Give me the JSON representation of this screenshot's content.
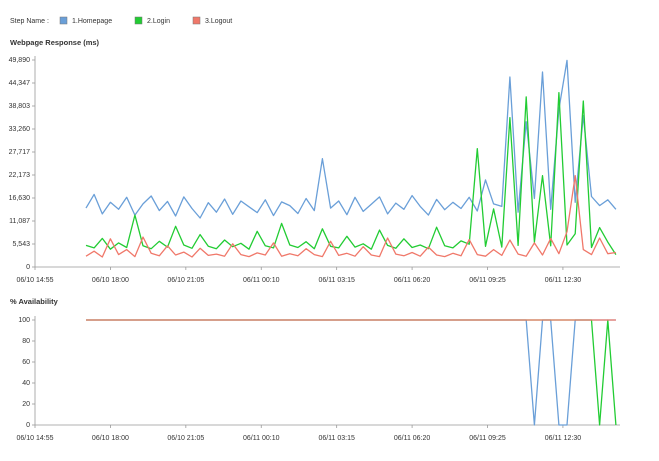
{
  "legend_title": "Step Name :",
  "chart_data": [
    {
      "type": "line",
      "title": "Webpage Response (ms)",
      "x": [
        "06/10 17:00",
        "06/10 17:20",
        "06/10 17:40",
        "06/10 18:00",
        "06/10 18:20",
        "06/10 18:40",
        "06/10 19:00",
        "06/10 19:20",
        "06/10 19:40",
        "06/10 20:00",
        "06/10 20:20",
        "06/10 20:40",
        "06/10 21:00",
        "06/10 21:20",
        "06/10 21:40",
        "06/10 22:00",
        "06/10 22:20",
        "06/10 22:40",
        "06/10 23:00",
        "06/10 23:20",
        "06/10 23:40",
        "06/11 00:00",
        "06/11 00:20",
        "06/11 00:40",
        "06/11 01:00",
        "06/11 01:20",
        "06/11 01:40",
        "06/11 02:00",
        "06/11 02:20",
        "06/11 02:40",
        "06/11 03:00",
        "06/11 03:20",
        "06/11 03:40",
        "06/11 04:00",
        "06/11 04:20",
        "06/11 04:40",
        "06/11 05:00",
        "06/11 05:20",
        "06/11 05:40",
        "06/11 06:00",
        "06/11 06:20",
        "06/11 06:40",
        "06/11 07:00",
        "06/11 07:20",
        "06/11 07:40",
        "06/11 08:00",
        "06/11 08:20",
        "06/11 08:40",
        "06/11 09:00",
        "06/11 09:20",
        "06/11 09:40",
        "06/11 10:00",
        "06/11 10:20",
        "06/11 10:40",
        "06/11 11:00",
        "06/11 11:20",
        "06/11 11:40",
        "06/11 12:00",
        "06/11 12:20",
        "06/11 12:40",
        "06/11 13:00",
        "06/11 13:20",
        "06/11 13:40",
        "06/11 14:00",
        "06/11 14:20",
        "06/11 14:40"
      ],
      "xlim": [
        "06/10 14:55",
        "06/11 14:50"
      ],
      "xticks": [
        "06/10 14:55",
        "06/10 18:00",
        "06/10 21:05",
        "06/11 00:10",
        "06/11 03:15",
        "06/11 06:20",
        "06/11 09:25",
        "06/11 12:30"
      ],
      "ylim": [
        0,
        49890
      ],
      "yticks": [
        0,
        {
          "value": 5543,
          "label": "5,543"
        },
        {
          "value": 11087,
          "label": "11,087"
        },
        {
          "value": 16630,
          "label": "16,630"
        },
        {
          "value": 22173,
          "label": "22,173"
        },
        {
          "value": 27717,
          "label": "27,717"
        },
        {
          "value": 33260,
          "label": "33,260"
        },
        {
          "value": 38803,
          "label": "38,803"
        },
        {
          "value": 44347,
          "label": "44,347"
        },
        {
          "value": 49890,
          "label": "49,890"
        }
      ],
      "series": [
        {
          "name": "1.Homepage",
          "color": "#6a9fd8",
          "values": [
            14200,
            17500,
            12800,
            15600,
            13900,
            16800,
            12500,
            15200,
            17100,
            13600,
            15800,
            12300,
            16900,
            14100,
            11800,
            15500,
            13200,
            16400,
            12700,
            15900,
            14500,
            13100,
            16200,
            12400,
            15700,
            14800,
            12900,
            16500,
            13600,
            26100,
            14200,
            15900,
            12600,
            16800,
            13400,
            15100,
            16900,
            12800,
            15400,
            13900,
            17200,
            14600,
            12500,
            16300,
            13800,
            15600,
            14100,
            16800,
            13500,
            21000,
            15200,
            14600,
            45800,
            13200,
            35000,
            16500,
            47000,
            13900,
            38000,
            49800,
            15600,
            36500,
            17000,
            14800,
            16200,
            13900
          ]
        },
        {
          "name": "2.Login",
          "color": "#22cc33",
          "values": [
            5200,
            4600,
            6900,
            4300,
            5800,
            4700,
            12500,
            5100,
            4400,
            6200,
            4800,
            9800,
            5300,
            4500,
            7800,
            5000,
            4400,
            6500,
            4900,
            5700,
            4300,
            8600,
            5100,
            4600,
            10500,
            5300,
            4700,
            6100,
            4400,
            9200,
            5000,
            4600,
            7400,
            4800,
            5600,
            4300,
            8900,
            5200,
            4500,
            6800,
            4700,
            5300,
            4400,
            9600,
            5100,
            4600,
            6300,
            5500,
            28500,
            5000,
            14000,
            4800,
            36000,
            5200,
            41000,
            6000,
            22000,
            5100,
            42000,
            5300,
            8000,
            40000,
            4700,
            9500,
            6000,
            3000
          ]
        },
        {
          "name": "3.Logout",
          "color": "#f0786a",
          "values": [
            2600,
            3800,
            2400,
            6800,
            3000,
            4200,
            2500,
            7200,
            3300,
            2700,
            5100,
            2900,
            3600,
            2400,
            4500,
            2800,
            3100,
            2600,
            5600,
            3000,
            2500,
            3400,
            2900,
            5800,
            2600,
            3200,
            2700,
            4400,
            3000,
            2500,
            6200,
            2800,
            3300,
            2600,
            4900,
            2900,
            2500,
            7000,
            3100,
            2700,
            3500,
            2600,
            4800,
            2900,
            2500,
            3300,
            2700,
            6600,
            3000,
            2600,
            4200,
            2800,
            6500,
            3100,
            2600,
            5800,
            2900,
            6900,
            3200,
            8500,
            22000,
            4200,
            3000,
            7000,
            3200,
            3500
          ]
        }
      ]
    },
    {
      "type": "line",
      "title": "% Availability",
      "x": [
        "06/10 17:00",
        "06/10 17:20",
        "06/10 17:40",
        "06/10 18:00",
        "06/10 18:20",
        "06/10 18:40",
        "06/10 19:00",
        "06/10 19:20",
        "06/10 19:40",
        "06/10 20:00",
        "06/10 20:20",
        "06/10 20:40",
        "06/10 21:00",
        "06/10 21:20",
        "06/10 21:40",
        "06/10 22:00",
        "06/10 22:20",
        "06/10 22:40",
        "06/10 23:00",
        "06/10 23:20",
        "06/10 23:40",
        "06/11 00:00",
        "06/11 00:20",
        "06/11 00:40",
        "06/11 01:00",
        "06/11 01:20",
        "06/11 01:40",
        "06/11 02:00",
        "06/11 02:20",
        "06/11 02:40",
        "06/11 03:00",
        "06/11 03:20",
        "06/11 03:40",
        "06/11 04:00",
        "06/11 04:20",
        "06/11 04:40",
        "06/11 05:00",
        "06/11 05:20",
        "06/11 05:40",
        "06/11 06:00",
        "06/11 06:20",
        "06/11 06:40",
        "06/11 07:00",
        "06/11 07:20",
        "06/11 07:40",
        "06/11 08:00",
        "06/11 08:20",
        "06/11 08:40",
        "06/11 09:00",
        "06/11 09:20",
        "06/11 09:40",
        "06/11 10:00",
        "06/11 10:20",
        "06/11 10:40",
        "06/11 11:00",
        "06/11 11:20",
        "06/11 11:40",
        "06/11 12:00",
        "06/11 12:20",
        "06/11 12:40",
        "06/11 13:00",
        "06/11 13:20",
        "06/11 13:40",
        "06/11 14:00",
        "06/11 14:20",
        "06/11 14:40"
      ],
      "xlim": [
        "06/10 14:55",
        "06/11 14:50"
      ],
      "xticks": [
        "06/10 14:55",
        "06/10 18:00",
        "06/10 21:05",
        "06/11 00:10",
        "06/11 03:15",
        "06/11 06:20",
        "06/11 09:25",
        "06/11 12:30"
      ],
      "ylim": [
        0,
        100
      ],
      "yticks": [
        0,
        20,
        40,
        60,
        80,
        100
      ],
      "series": [
        {
          "color": "#6a9fd8",
          "values": [
            100,
            100,
            100,
            100,
            100,
            100,
            100,
            100,
            100,
            100,
            100,
            100,
            100,
            100,
            100,
            100,
            100,
            100,
            100,
            100,
            100,
            100,
            100,
            100,
            100,
            100,
            100,
            100,
            100,
            100,
            100,
            100,
            100,
            100,
            100,
            100,
            100,
            100,
            100,
            100,
            100,
            100,
            100,
            100,
            100,
            100,
            100,
            100,
            100,
            100,
            100,
            100,
            100,
            100,
            100,
            0,
            100,
            100,
            0,
            0,
            100,
            100,
            100,
            100,
            100,
            100
          ]
        },
        {
          "color": "#22cc33",
          "values": [
            100,
            100,
            100,
            100,
            100,
            100,
            100,
            100,
            100,
            100,
            100,
            100,
            100,
            100,
            100,
            100,
            100,
            100,
            100,
            100,
            100,
            100,
            100,
            100,
            100,
            100,
            100,
            100,
            100,
            100,
            100,
            100,
            100,
            100,
            100,
            100,
            100,
            100,
            100,
            100,
            100,
            100,
            100,
            100,
            100,
            100,
            100,
            100,
            100,
            100,
            100,
            100,
            100,
            100,
            100,
            100,
            100,
            100,
            100,
            100,
            100,
            100,
            100,
            0,
            100,
            0
          ]
        },
        {
          "color": "#f0786a",
          "values": [
            100,
            100,
            100,
            100,
            100,
            100,
            100,
            100,
            100,
            100,
            100,
            100,
            100,
            100,
            100,
            100,
            100,
            100,
            100,
            100,
            100,
            100,
            100,
            100,
            100,
            100,
            100,
            100,
            100,
            100,
            100,
            100,
            100,
            100,
            100,
            100,
            100,
            100,
            100,
            100,
            100,
            100,
            100,
            100,
            100,
            100,
            100,
            100,
            100,
            100,
            100,
            100,
            100,
            100,
            100,
            100,
            100,
            100,
            100,
            100,
            100,
            100,
            100,
            100,
            100,
            100
          ]
        }
      ]
    }
  ]
}
